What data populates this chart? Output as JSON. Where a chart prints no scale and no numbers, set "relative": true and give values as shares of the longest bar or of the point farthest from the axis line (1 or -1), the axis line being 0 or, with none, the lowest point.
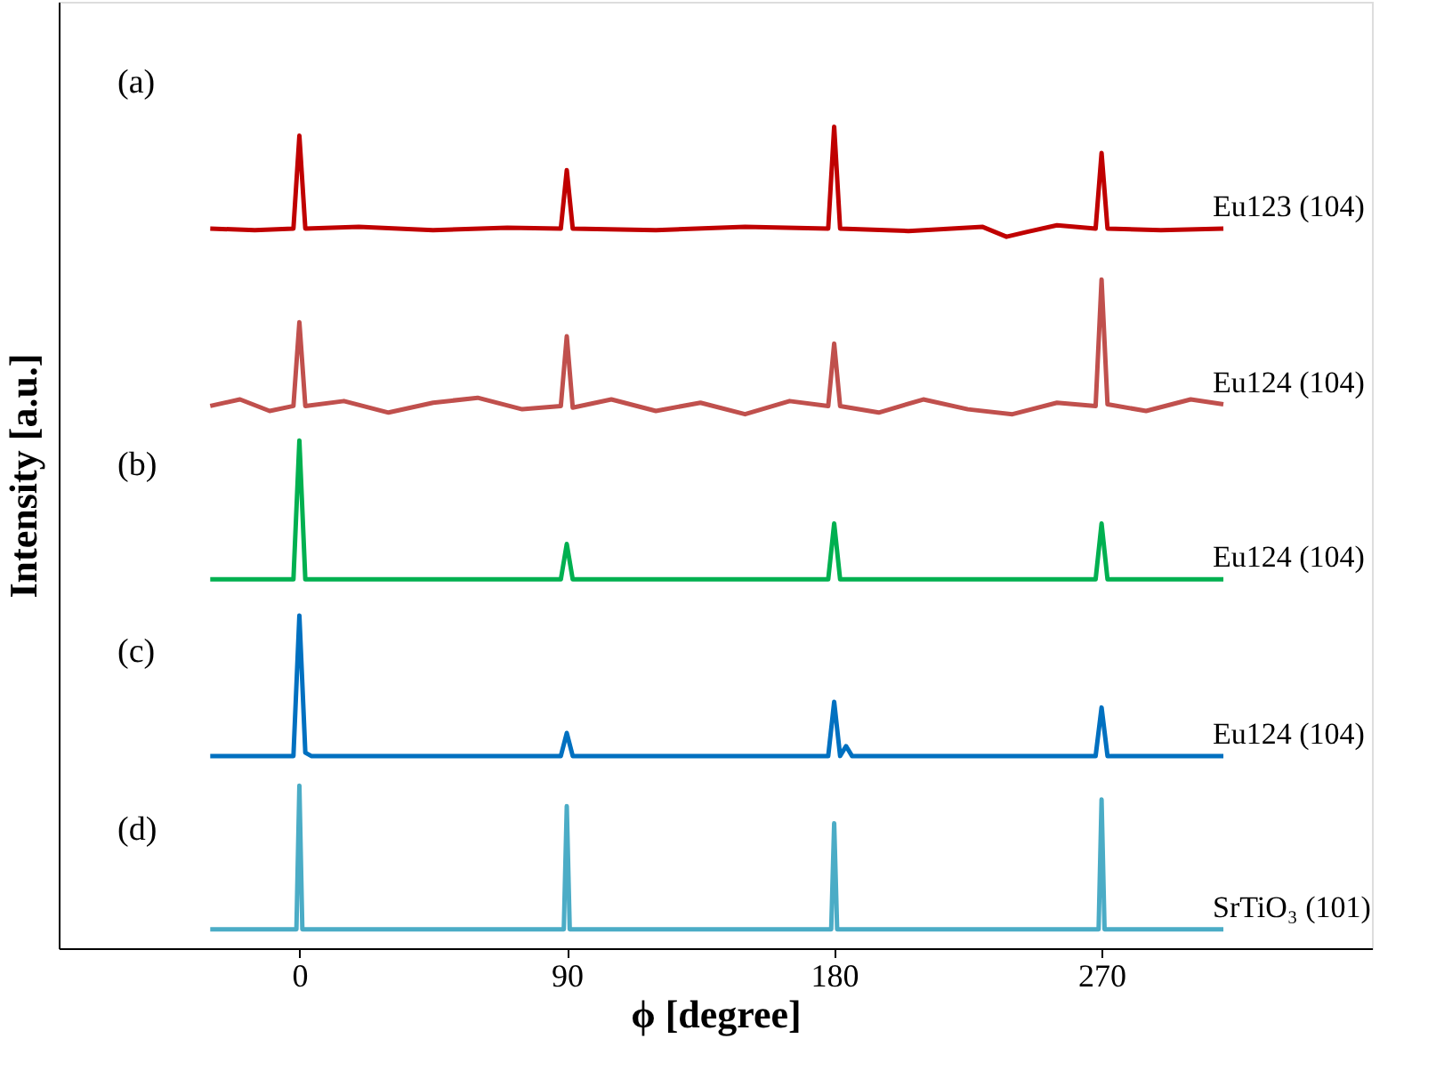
{
  "chart_data": {
    "type": "line",
    "relative": true,
    "xlabel": "ϕ [degree]",
    "ylabel": "Intensity [a.u.]",
    "xlim": [
      -81,
      361
    ],
    "xticks": [
      0,
      90,
      180,
      270
    ],
    "tick_labels": "x",
    "grid": false,
    "marker": "none",
    "line_style": "solid",
    "annotations": [
      "(a)",
      "(b)",
      "(c)",
      "(d)"
    ],
    "series": [
      {
        "name": "Eu123 (104)",
        "color": "#c00000",
        "x": [
          -30,
          -15,
          -2,
          0,
          2,
          20,
          45,
          70,
          88,
          90,
          92,
          120,
          150,
          178,
          180,
          182,
          205,
          230,
          238,
          245,
          255,
          268,
          270,
          272,
          290,
          311
        ],
        "values": [
          0.876,
          0.874,
          0.876,
          0.989,
          0.876,
          0.878,
          0.874,
          0.877,
          0.876,
          0.947,
          0.876,
          0.874,
          0.878,
          0.876,
          1.0,
          0.876,
          0.873,
          0.878,
          0.866,
          0.872,
          0.88,
          0.876,
          0.968,
          0.876,
          0.874,
          0.876
        ]
      },
      {
        "name": "Eu124 (104)",
        "color": "#c0504d",
        "x": [
          -30,
          -20,
          -10,
          -2,
          0,
          2,
          15,
          30,
          45,
          60,
          75,
          88,
          90,
          92,
          105,
          120,
          135,
          150,
          165,
          178,
          180,
          182,
          195,
          210,
          225,
          240,
          255,
          268,
          270,
          272,
          285,
          300,
          311
        ],
        "values": [
          0.66,
          0.668,
          0.654,
          0.66,
          0.762,
          0.66,
          0.666,
          0.652,
          0.664,
          0.67,
          0.656,
          0.66,
          0.745,
          0.658,
          0.668,
          0.654,
          0.664,
          0.65,
          0.666,
          0.66,
          0.736,
          0.66,
          0.652,
          0.668,
          0.656,
          0.65,
          0.664,
          0.66,
          0.814,
          0.662,
          0.654,
          0.668,
          0.662
        ]
      },
      {
        "name": "Eu124 (104)",
        "color": "#00b050",
        "x": [
          -30,
          -2,
          0,
          2,
          40,
          88,
          90,
          92,
          135,
          178,
          180,
          182,
          225,
          268,
          270,
          272,
          311
        ],
        "values": [
          0.449,
          0.449,
          0.618,
          0.449,
          0.449,
          0.449,
          0.492,
          0.449,
          0.449,
          0.449,
          0.517,
          0.449,
          0.449,
          0.449,
          0.517,
          0.449,
          0.449
        ]
      },
      {
        "name": "Eu124 (104)",
        "color": "#0070c0",
        "x": [
          -30,
          -2,
          0,
          2,
          4,
          40,
          88,
          90,
          92,
          135,
          178,
          180,
          182,
          184,
          186,
          225,
          268,
          270,
          272,
          311
        ],
        "values": [
          0.234,
          0.234,
          0.405,
          0.238,
          0.234,
          0.234,
          0.234,
          0.262,
          0.234,
          0.234,
          0.234,
          0.3,
          0.234,
          0.246,
          0.234,
          0.234,
          0.234,
          0.293,
          0.234,
          0.234
        ]
      },
      {
        "name": "SrTiO₃ (101)",
        "color": "#4bacc6",
        "x": [
          -30,
          -1,
          0,
          1,
          45,
          89,
          90,
          91,
          135,
          179,
          180,
          181,
          225,
          269,
          270,
          271,
          311
        ],
        "values": [
          0.023,
          0.023,
          0.198,
          0.023,
          0.023,
          0.023,
          0.173,
          0.023,
          0.023,
          0.023,
          0.152,
          0.023,
          0.023,
          0.023,
          0.181,
          0.023,
          0.023
        ]
      }
    ]
  }
}
